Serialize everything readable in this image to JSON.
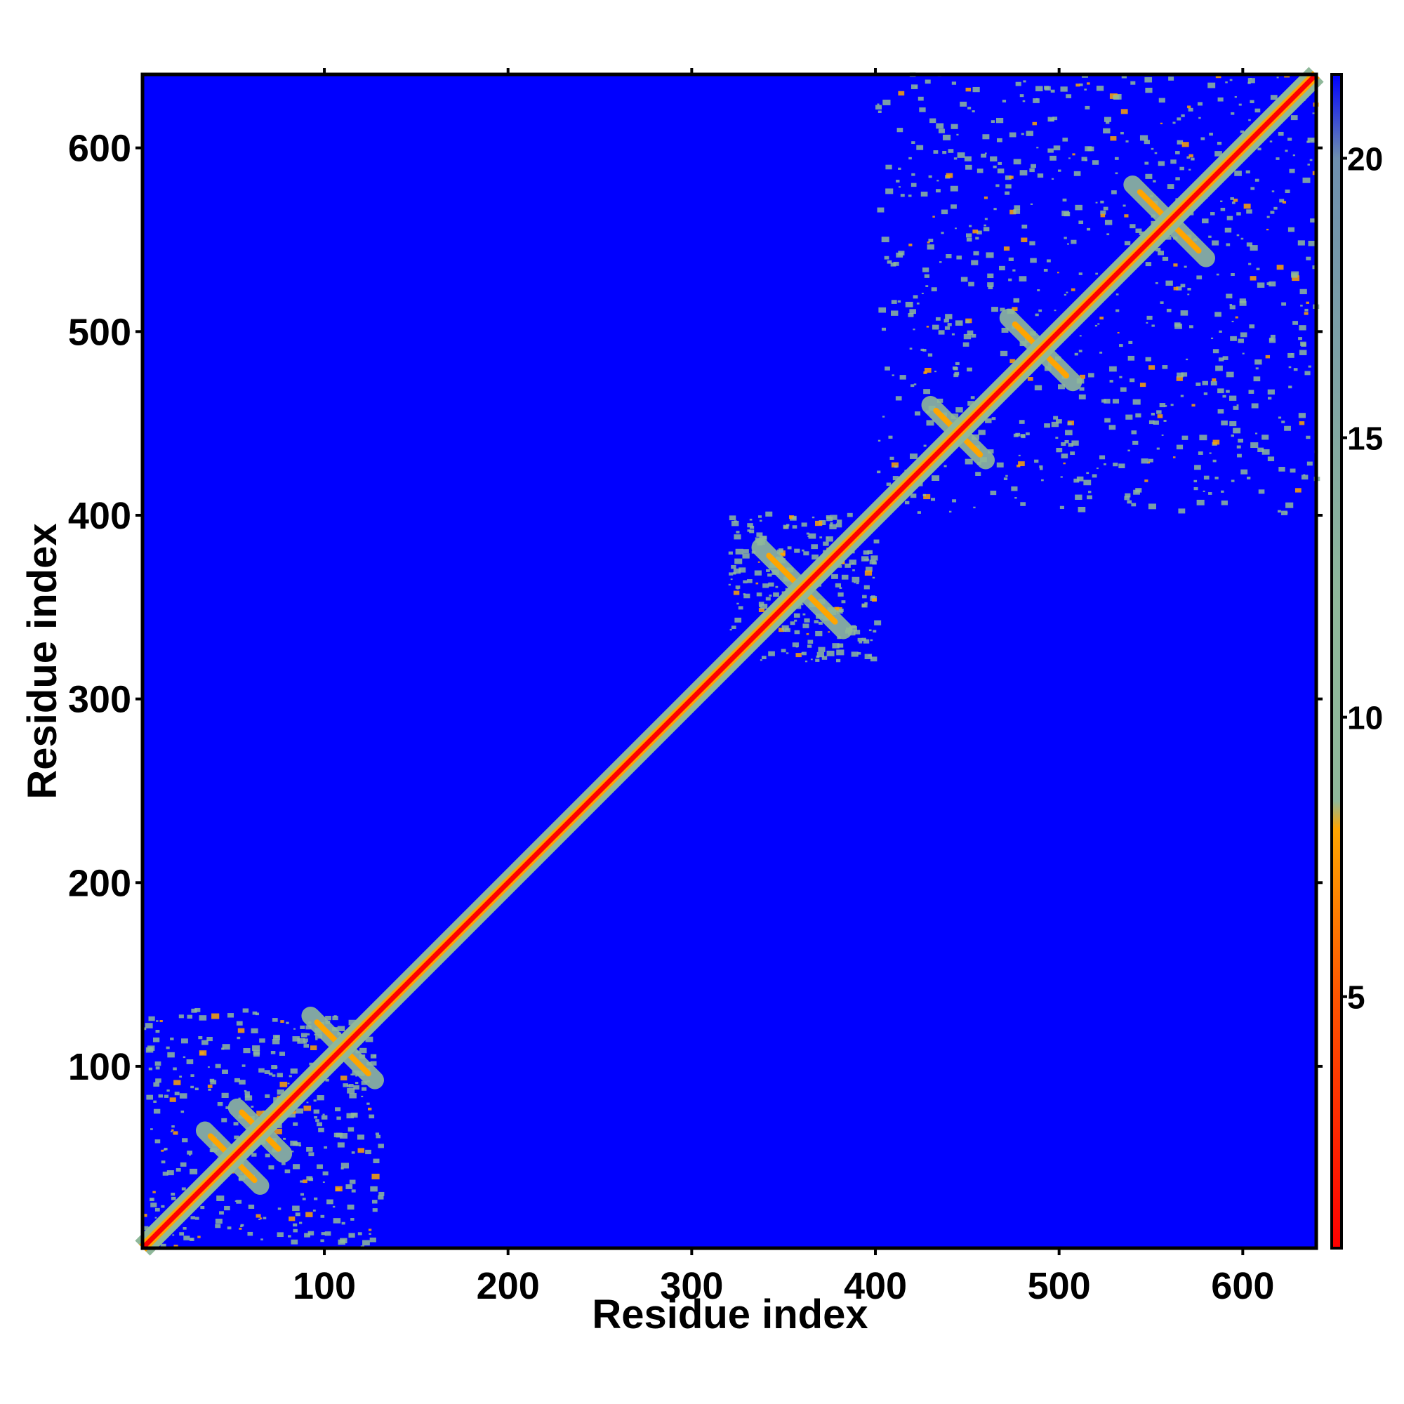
{
  "chart_data": {
    "type": "heatmap",
    "title": "",
    "xlabel": "Residue index",
    "ylabel": "Residue index",
    "xlim": [
      1,
      640
    ],
    "ylim": [
      1,
      640
    ],
    "x_ticks": [
      "100",
      "200",
      "300",
      "400",
      "500",
      "600"
    ],
    "y_ticks": [
      "100",
      "200",
      "300",
      "400",
      "500",
      "600"
    ],
    "colorbar": {
      "ticks": [
        "5",
        "10",
        "15",
        "20"
      ],
      "range": [
        0.5,
        21.5
      ],
      "stops": [
        {
          "value": 0.5,
          "color": "#ff0000"
        },
        {
          "value": 5,
          "color": "#ff5500"
        },
        {
          "value": 8,
          "color": "#ffa500"
        },
        {
          "value": 8.5,
          "color": "#8fb89a"
        },
        {
          "value": 12,
          "color": "#8fb89a"
        },
        {
          "value": 20,
          "color": "#6e8fae"
        },
        {
          "value": 21.5,
          "color": "#0000ff"
        }
      ]
    },
    "background_value": 21,
    "colors": {
      "far": "#0000ff",
      "contact": "#8fb89a",
      "close": "#ffa500",
      "diagonal": "#ff0000"
    },
    "domains": [
      {
        "start": 1,
        "end": 130
      },
      {
        "start": 320,
        "end": 400
      },
      {
        "start": 400,
        "end": 640
      }
    ],
    "cross_contacts": [
      {
        "x": 50,
        "y": 50,
        "len": 30
      },
      {
        "x": 65,
        "y": 65,
        "len": 25
      },
      {
        "x": 110,
        "y": 110,
        "len": 35
      },
      {
        "x": 360,
        "y": 360,
        "len": 45
      },
      {
        "x": 445,
        "y": 445,
        "len": 30
      },
      {
        "x": 490,
        "y": 490,
        "len": 35
      },
      {
        "x": 560,
        "y": 560,
        "len": 40
      }
    ]
  }
}
